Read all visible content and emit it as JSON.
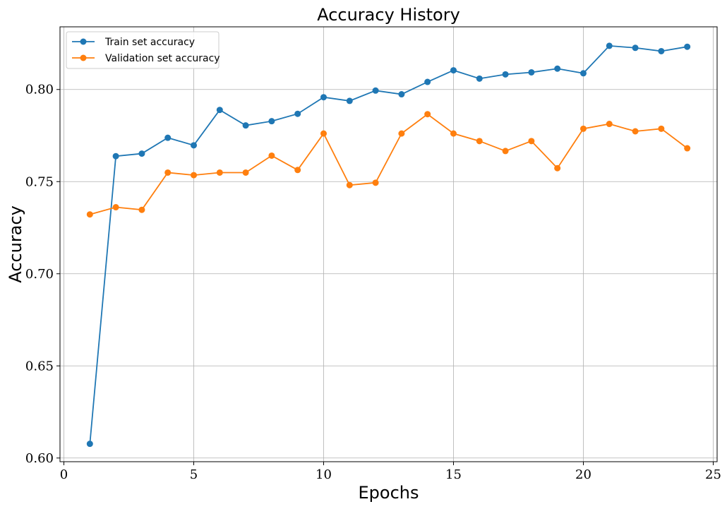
{
  "chart_data": {
    "type": "line",
    "title": "Accuracy History",
    "xlabel": "Epochs",
    "ylabel": "Accuracy",
    "xlim": [
      -0.15,
      25.15
    ],
    "ylim": [
      0.598,
      0.834
    ],
    "xticks": [
      0,
      5,
      10,
      15,
      20,
      25
    ],
    "xtick_labels": [
      "0",
      "5",
      "10",
      "15",
      "20",
      "25"
    ],
    "yticks": [
      0.6,
      0.65,
      0.7,
      0.75,
      0.8
    ],
    "ytick_labels": [
      "0.60",
      "0.65",
      "0.70",
      "0.75",
      "0.80"
    ],
    "grid": true,
    "legend_position": "top-left",
    "x": [
      1,
      2,
      3,
      4,
      5,
      6,
      7,
      8,
      9,
      10,
      11,
      12,
      13,
      14,
      15,
      16,
      17,
      18,
      19,
      20,
      21,
      22,
      23,
      24
    ],
    "series": [
      {
        "name": "Train set accuracy",
        "color": "#1f77b4",
        "values": [
          0.6077,
          0.7638,
          0.7652,
          0.7738,
          0.7697,
          0.7889,
          0.7805,
          0.7828,
          0.7868,
          0.7958,
          0.7938,
          0.7994,
          0.7974,
          0.8041,
          0.8104,
          0.8059,
          0.8082,
          0.8093,
          0.8113,
          0.8088,
          0.8237,
          0.8226,
          0.8208,
          0.8232
        ]
      },
      {
        "name": "Validation set accuracy",
        "color": "#ff7f0e",
        "values": [
          0.7322,
          0.7361,
          0.7347,
          0.7549,
          0.7535,
          0.7549,
          0.7549,
          0.7641,
          0.7563,
          0.7761,
          0.7481,
          0.7494,
          0.7761,
          0.7866,
          0.7761,
          0.772,
          0.7666,
          0.772,
          0.7573,
          0.7787,
          0.7813,
          0.7773,
          0.7787,
          0.7681
        ]
      }
    ]
  }
}
